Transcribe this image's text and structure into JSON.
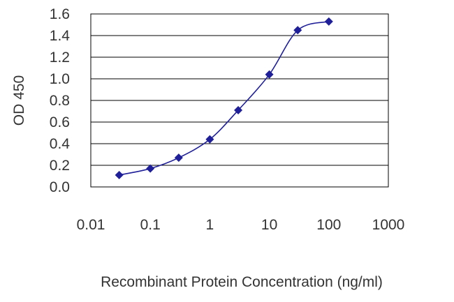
{
  "chart_data": {
    "type": "line",
    "title": "",
    "xlabel": "Recombinant Protein Concentration (ng/ml)",
    "ylabel": "OD 450",
    "x_scale": "log",
    "xlim": [
      0.01,
      1000
    ],
    "ylim": [
      0.0,
      1.6
    ],
    "x_ticks": [
      0.01,
      0.1,
      1,
      10,
      100,
      1000
    ],
    "x_tick_labels": [
      "0.01",
      "0.1",
      "1",
      "10",
      "100",
      "1000"
    ],
    "y_ticks": [
      0.0,
      0.2,
      0.4,
      0.6,
      0.8,
      1.0,
      1.2,
      1.4,
      1.6
    ],
    "y_tick_labels": [
      "0.0",
      "0.2",
      "0.4",
      "0.6",
      "0.8",
      "1.0",
      "1.2",
      "1.4",
      "1.6"
    ],
    "grid": "horizontal",
    "legend": "none",
    "series": [
      {
        "x": [
          0.03,
          0.1,
          0.3,
          1,
          3,
          10,
          30,
          100
        ],
        "y": [
          0.11,
          0.17,
          0.27,
          0.44,
          0.71,
          1.04,
          1.45,
          1.53
        ],
        "color": "#1f1f9a",
        "marker": "diamond"
      }
    ]
  }
}
